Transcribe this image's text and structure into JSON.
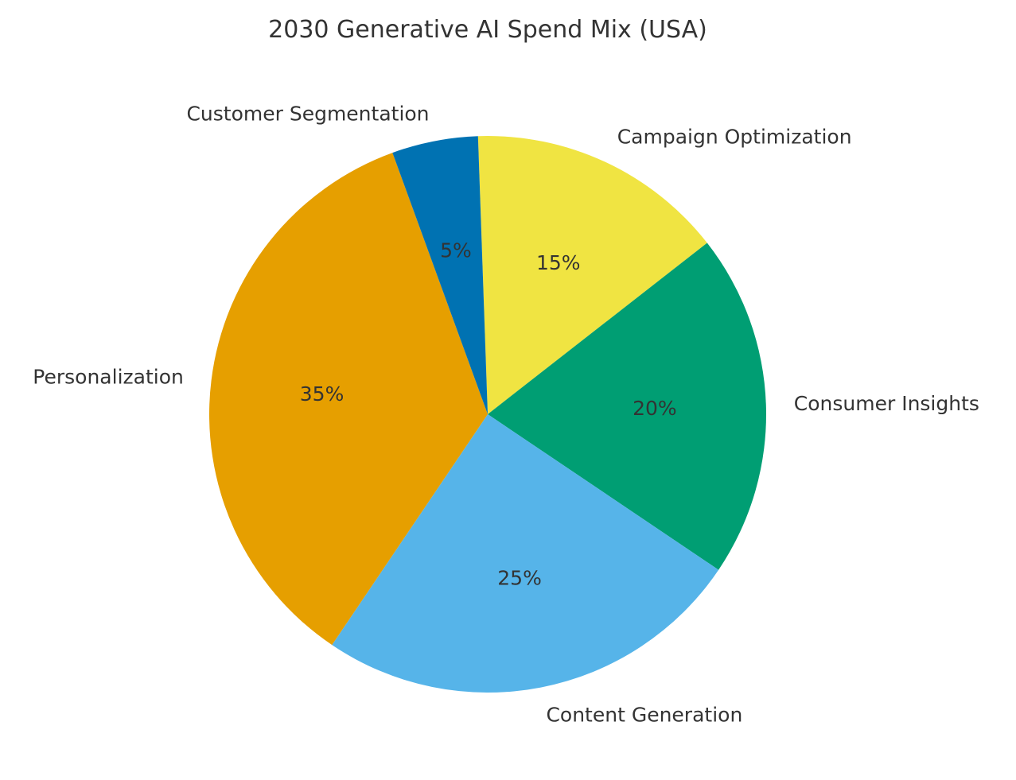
{
  "chart_data": {
    "type": "pie",
    "title": "2030 Generative AI Spend Mix (USA)",
    "start_angle_deg": 92,
    "direction": "clockwise",
    "slices": [
      {
        "label": "Campaign Optimization",
        "value": 15,
        "pct_label": "15%",
        "color": "#F0E442"
      },
      {
        "label": "Consumer Insights",
        "value": 20,
        "pct_label": "20%",
        "color": "#009E73"
      },
      {
        "label": "Content Generation",
        "value": 25,
        "pct_label": "25%",
        "color": "#56B4E9"
      },
      {
        "label": "Personalization",
        "value": 35,
        "pct_label": "35%",
        "color": "#E69F00"
      },
      {
        "label": "Customer Segmentation",
        "value": 5,
        "pct_label": "5%",
        "color": "#0072B2"
      }
    ]
  }
}
